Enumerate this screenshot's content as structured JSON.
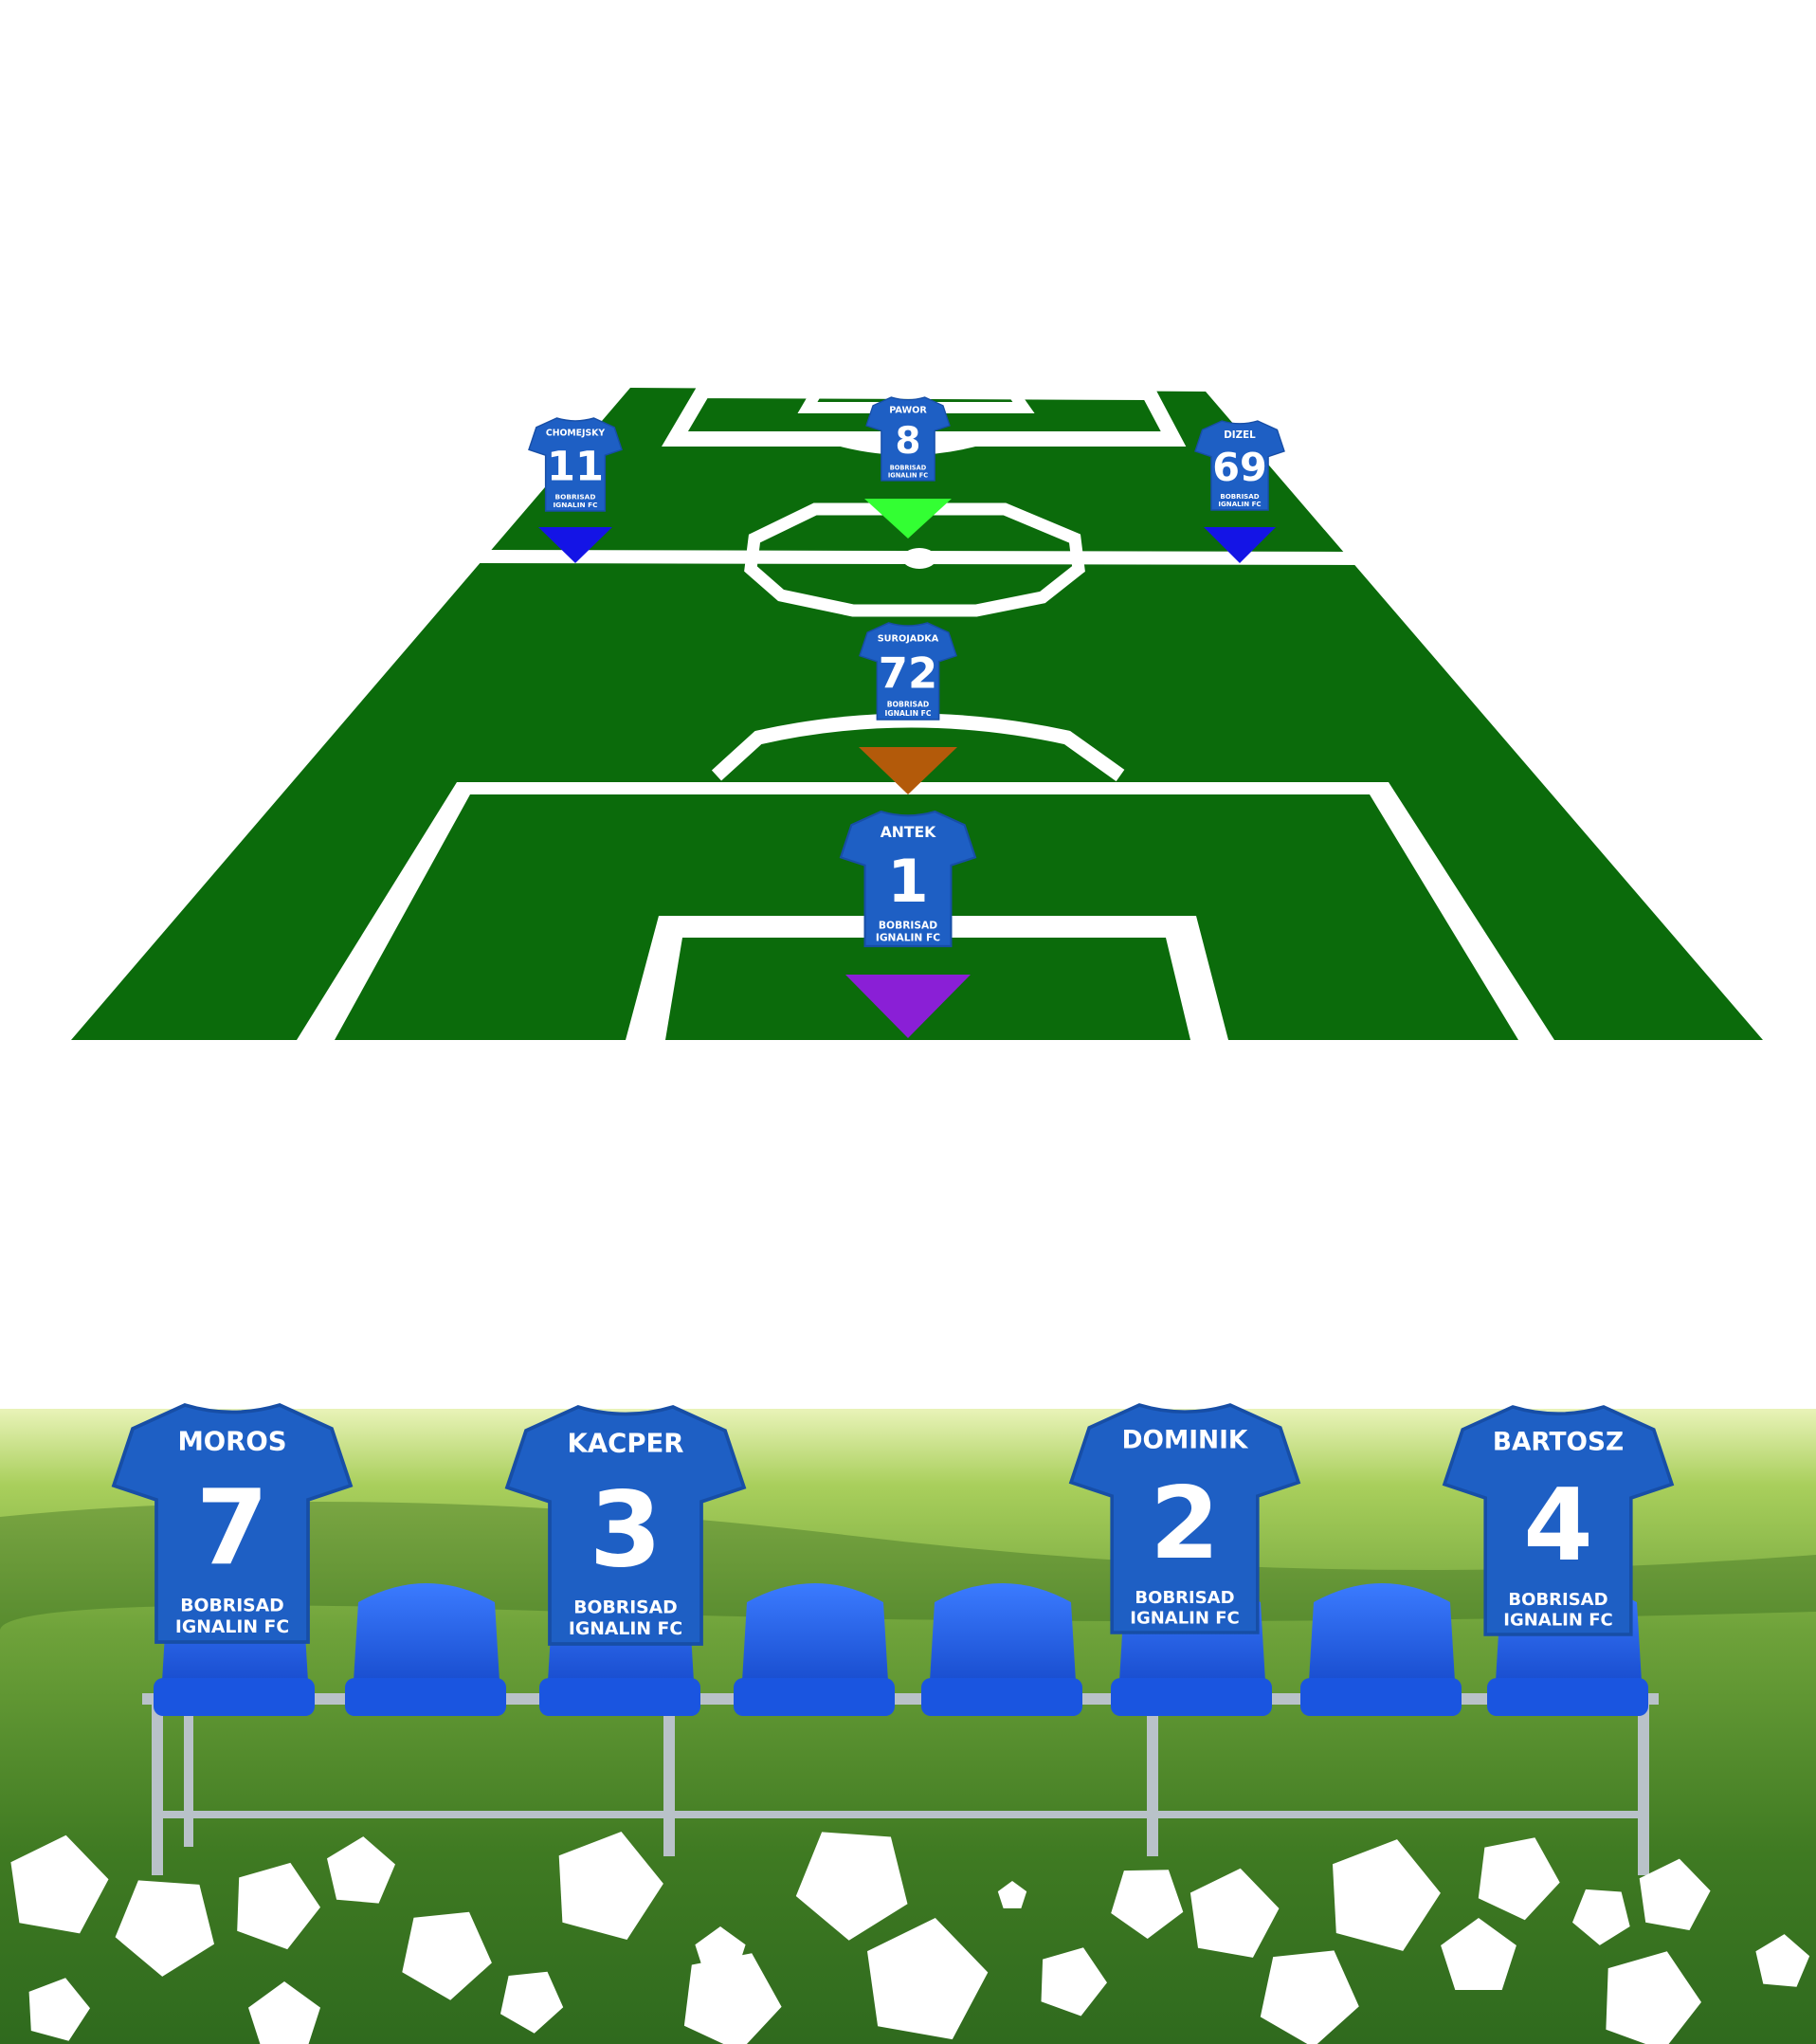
{
  "colors": {
    "pitch": "#0b6b0b",
    "lines": "#ffffff",
    "shirt": "#1e5fc4",
    "shirt_dark": "#174ea6",
    "seat": "#1f5ff0",
    "grass_light": "#b9d86a",
    "grass_dark": "#3f7a22"
  },
  "club_line1": "BOBRISAD",
  "club_line2": "IGNALIN FC",
  "club_line2_small": "IGNALIN FC",
  "lineup": [
    {
      "id": "chomejsky",
      "name": "CHOMEJSKY",
      "number": "11",
      "marker_color": "#1414e6"
    },
    {
      "id": "pawor",
      "name": "PAWOR",
      "number": "8",
      "marker_color": "#33ff33"
    },
    {
      "id": "dizel",
      "name": "DIZEL",
      "number": "69",
      "marker_color": "#1414e6"
    },
    {
      "id": "surojadka",
      "name": "SUROJADKA",
      "number": "72",
      "marker_color": "#b35a0a"
    },
    {
      "id": "antek",
      "name": "ANTEK",
      "number": "1",
      "marker_color": "#8a1fd6"
    }
  ],
  "bench": [
    {
      "id": "moros",
      "name": "MOROS",
      "number": "7"
    },
    {
      "id": "kacper",
      "name": "KACPER",
      "number": "3"
    },
    {
      "id": "dominik",
      "name": "DOMINIK",
      "number": "2"
    },
    {
      "id": "bartosz",
      "name": "BARTOSZ",
      "number": "4"
    }
  ]
}
